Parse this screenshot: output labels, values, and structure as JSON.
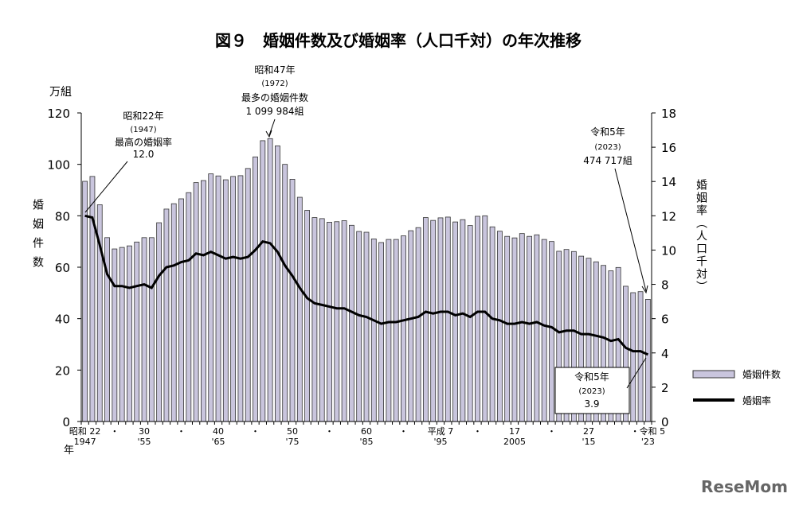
{
  "chart_data": {
    "type": "bar+line",
    "title": "図９　婚姻件数及び婚姻率（人口千対）の年次推移",
    "left_unit": "万組",
    "left_axis_label": "婚姻件数",
    "right_axis_label": "婚姻率（人口千対）",
    "x_axis_label": "年",
    "left_ylim": [
      0,
      120
    ],
    "left_ticks": [
      0,
      20,
      40,
      60,
      80,
      100,
      120
    ],
    "right_ylim": [
      0,
      18
    ],
    "right_ticks": [
      0,
      2,
      4,
      6,
      8,
      10,
      12,
      14,
      16,
      18
    ],
    "x_ticks": [
      {
        "year": 1947,
        "top": "昭和 22",
        "bottom": "1947"
      },
      {
        "year": 1951,
        "top": "・",
        "bottom": ""
      },
      {
        "year": 1955,
        "top": "30",
        "bottom": "'55"
      },
      {
        "year": 1960,
        "top": "・",
        "bottom": ""
      },
      {
        "year": 1965,
        "top": "40",
        "bottom": "'65"
      },
      {
        "year": 1970,
        "top": "・",
        "bottom": ""
      },
      {
        "year": 1975,
        "top": "50",
        "bottom": "'75"
      },
      {
        "year": 1980,
        "top": "・",
        "bottom": ""
      },
      {
        "year": 1985,
        "top": "60",
        "bottom": "'85"
      },
      {
        "year": 1990,
        "top": "・",
        "bottom": ""
      },
      {
        "year": 1995,
        "top": "平成 7",
        "bottom": "'95"
      },
      {
        "year": 2000,
        "top": "・",
        "bottom": ""
      },
      {
        "year": 2005,
        "top": "17",
        "bottom": "2005"
      },
      {
        "year": 2010,
        "top": "・",
        "bottom": ""
      },
      {
        "year": 2015,
        "top": "27",
        "bottom": "'15"
      },
      {
        "year": 2023,
        "top": "・令和 5",
        "bottom": "'23"
      }
    ],
    "x_start": 1947,
    "series": [
      {
        "name": "婚姻件数",
        "axis": "left",
        "type": "bar",
        "color": "#c9c5dd",
        "values": [
          93.4,
          95.3,
          84.3,
          71.5,
          67.1,
          67.7,
          68.3,
          69.8,
          71.5,
          71.5,
          77.3,
          82.6,
          84.7,
          86.6,
          89.0,
          92.9,
          93.7,
          96.3,
          95.5,
          94.0,
          95.3,
          95.6,
          98.4,
          102.9,
          109.2,
          110.0,
          107.2,
          100.0,
          94.2,
          87.2,
          82.1,
          79.3,
          78.9,
          77.5,
          77.7,
          78.1,
          76.3,
          73.9,
          73.6,
          71.0,
          69.6,
          70.8,
          70.8,
          72.2,
          74.2,
          75.4,
          79.3,
          78.2,
          79.2,
          79.5,
          77.6,
          78.5,
          76.2,
          79.8,
          80.0,
          75.7,
          74.0,
          72.0,
          71.4,
          73.1,
          72.0,
          72.6,
          70.8,
          70.0,
          66.2,
          66.9,
          66.1,
          64.3,
          63.5,
          62.1,
          60.7,
          58.6,
          59.9,
          52.6,
          50.1,
          50.5,
          47.5
        ]
      },
      {
        "name": "婚姻率",
        "axis": "right",
        "type": "line",
        "color": "#000000",
        "values": [
          12.0,
          11.9,
          10.3,
          8.6,
          7.9,
          7.9,
          7.8,
          7.9,
          8.0,
          7.8,
          8.5,
          9.0,
          9.1,
          9.3,
          9.4,
          9.8,
          9.7,
          9.9,
          9.7,
          9.5,
          9.6,
          9.5,
          9.6,
          10.0,
          10.5,
          10.4,
          9.9,
          9.1,
          8.5,
          7.8,
          7.2,
          6.9,
          6.8,
          6.7,
          6.6,
          6.6,
          6.4,
          6.2,
          6.1,
          5.9,
          5.7,
          5.8,
          5.8,
          5.9,
          6.0,
          6.1,
          6.4,
          6.3,
          6.4,
          6.4,
          6.2,
          6.3,
          6.1,
          6.4,
          6.4,
          6.0,
          5.9,
          5.7,
          5.7,
          5.8,
          5.7,
          5.8,
          5.6,
          5.5,
          5.2,
          5.3,
          5.3,
          5.1,
          5.1,
          5.0,
          4.9,
          4.7,
          4.8,
          4.3,
          4.1,
          4.1,
          3.9
        ]
      }
    ],
    "annotations": [
      {
        "lines": [
          "昭和47年",
          "(1972)",
          "最多の婚姻件数",
          "1 099 984組"
        ]
      },
      {
        "lines": [
          "昭和22年",
          "(1947)",
          "最高の婚姻率",
          "12.0"
        ]
      },
      {
        "lines": [
          "令和5年",
          "(2023)",
          "474 717組"
        ]
      },
      {
        "lines": [
          "令和5年",
          "(2023)",
          "3.9"
        ]
      }
    ],
    "legend": {
      "placement": "bottom-right"
    }
  },
  "watermark": "ReseMom"
}
